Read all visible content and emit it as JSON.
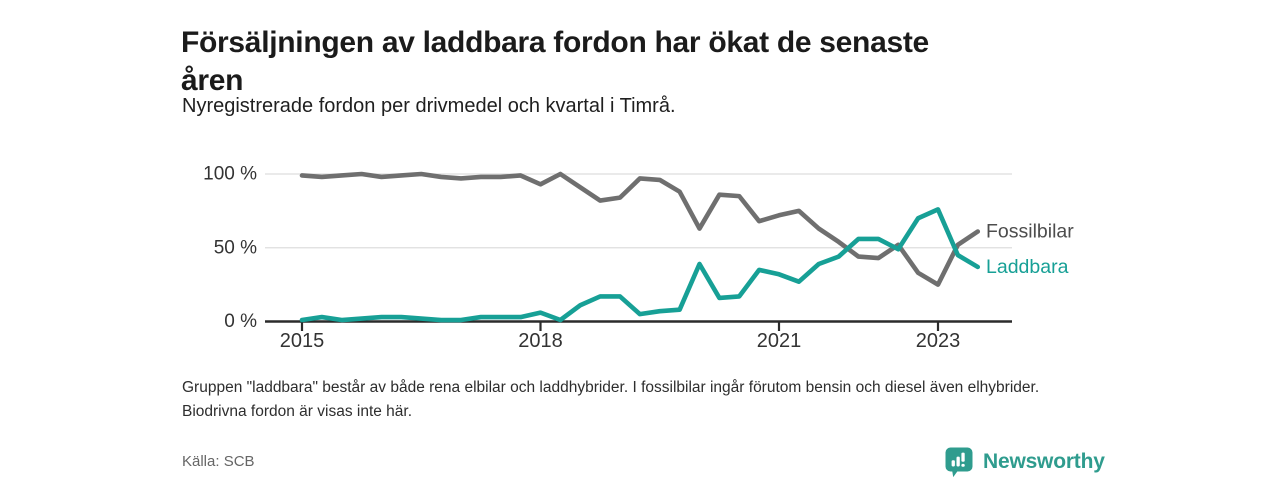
{
  "page": {
    "title_lines": [
      "Försäljningen av laddbara fordon har ökat de senaste",
      "åren"
    ],
    "subtitle": "Nyregistrerade fordon per drivmedel och kvartal i Timrå.",
    "footnote": "Gruppen \"laddbara\" består av både rena elbilar och laddhybrider. I fossilbilar ingår förutom bensin och diesel även elhybrider. Biodrivna fordon är visas inte här.",
    "source": "Källa: SCB",
    "logo_text": "Newsworthy"
  },
  "colors": {
    "series_fossil_gray": "#6f6f6f",
    "series_laddbara_teal": "#17a096",
    "fossil_label_text": "#4d4d4d",
    "axis_line": "#2b2b2b",
    "gridline": "#dedede",
    "tick_text": "#333333",
    "title_text": "#1b1b1b",
    "muted_text": "#666666",
    "logo_teal": "#2f9c8e"
  },
  "chart_data": {
    "type": "line",
    "title": "Försäljningen av laddbara fordon har ökat de senaste åren",
    "subtitle": "Nyregistrerade fordon per drivmedel och kvartal i Timrå.",
    "xlabel": "",
    "ylabel": "",
    "unit": "%",
    "frequency": "quarterly",
    "x_start": "2015 K1",
    "x_end": "2023 K3",
    "ylim": [
      0,
      100
    ],
    "grid": "horizontal",
    "legend_position": "right-end-labels",
    "y_tick_values": [
      0,
      50,
      100
    ],
    "y_tick_labels": [
      "0 %",
      "50 %",
      "100 %"
    ],
    "x_tick_labels": [
      "2015",
      "2018",
      "2021",
      "2023"
    ],
    "x_tick_indices": [
      0,
      12,
      24,
      32
    ],
    "quarters": [
      "2015 K1",
      "2015 K2",
      "2015 K3",
      "2015 K4",
      "2016 K1",
      "2016 K2",
      "2016 K3",
      "2016 K4",
      "2017 K1",
      "2017 K2",
      "2017 K3",
      "2017 K4",
      "2018 K1",
      "2018 K2",
      "2018 K3",
      "2018 K4",
      "2019 K1",
      "2019 K2",
      "2019 K3",
      "2019 K4",
      "2020 K1",
      "2020 K2",
      "2020 K3",
      "2020 K4",
      "2021 K1",
      "2021 K2",
      "2021 K3",
      "2021 K4",
      "2022 K1",
      "2022 K2",
      "2022 K3",
      "2022 K4",
      "2023 K1",
      "2023 K2",
      "2023 K3"
    ],
    "series": [
      {
        "name": "Fossilbilar",
        "color": "#6f6f6f",
        "values": [
          99,
          98,
          99,
          100,
          98,
          99,
          100,
          98,
          97,
          98,
          98,
          99,
          93,
          100,
          91,
          82,
          84,
          97,
          96,
          88,
          63,
          86,
          85,
          68,
          72,
          75,
          63,
          54,
          44,
          43,
          52,
          33,
          25,
          52,
          61
        ]
      },
      {
        "name": "Laddbara",
        "color": "#17a096",
        "values": [
          1,
          3,
          1,
          2,
          3,
          3,
          2,
          1,
          1,
          3,
          3,
          3,
          6,
          1,
          11,
          17,
          17,
          5,
          7,
          8,
          39,
          16,
          17,
          35,
          32,
          27,
          39,
          44,
          56,
          56,
          49,
          70,
          76,
          45,
          37
        ]
      }
    ]
  }
}
